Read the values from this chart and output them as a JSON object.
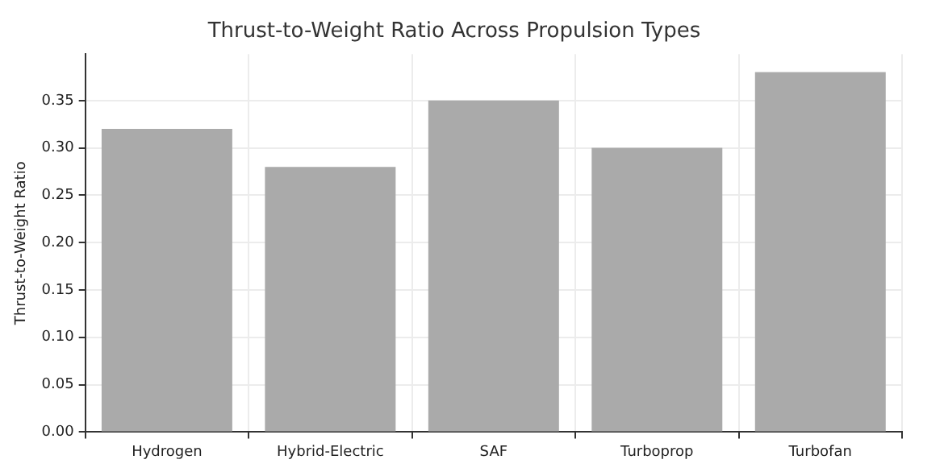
{
  "chart_data": {
    "type": "bar",
    "title": "Thrust-to-Weight Ratio Across Propulsion Types",
    "ylabel": "Thrust-to-Weight Ratio",
    "categories": [
      "Hydrogen",
      "Hybrid-Electric",
      "SAF",
      "Turboprop",
      "Turbofan"
    ],
    "values": [
      0.32,
      0.28,
      0.35,
      0.3,
      0.38
    ],
    "color": "#aaaaaa",
    "ylim": [
      0,
      0.399
    ],
    "yticks": [
      {
        "value": 0,
        "label": "0.00"
      },
      {
        "value": 0.05,
        "label": "0.05"
      },
      {
        "value": 0.1,
        "label": "0.10"
      },
      {
        "value": 0.15,
        "label": "0.15"
      },
      {
        "value": 0.2,
        "label": "0.20"
      },
      {
        "value": 0.25,
        "label": "0.25"
      },
      {
        "value": 0.3,
        "label": "0.30"
      },
      {
        "value": 0.35,
        "label": "0.35"
      }
    ],
    "grid": true
  }
}
